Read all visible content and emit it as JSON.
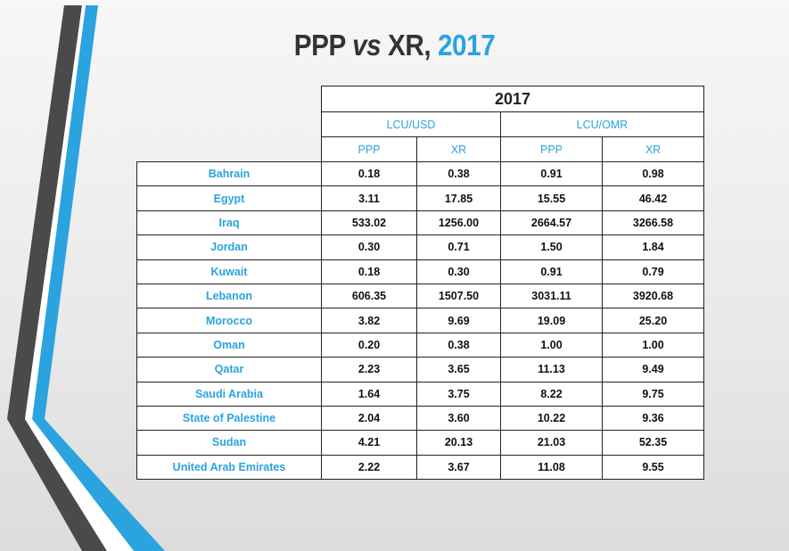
{
  "slide": {
    "title_main": "PPP ",
    "title_vs": "vs",
    "title_mid": " XR, ",
    "title_year": "2017"
  },
  "table": {
    "year": "2017",
    "groups": [
      "LCU/USD",
      "LCU/OMR"
    ],
    "subheaders": [
      "PPP",
      "XR",
      "PPP",
      "XR"
    ],
    "rows": [
      {
        "country": "Bahrain",
        "values": [
          "0.18",
          "0.38",
          "0.91",
          "0.98"
        ]
      },
      {
        "country": "Egypt",
        "values": [
          "3.11",
          "17.85",
          "15.55",
          "46.42"
        ]
      },
      {
        "country": "Iraq",
        "values": [
          "533.02",
          "1256.00",
          "2664.57",
          "3266.58"
        ]
      },
      {
        "country": "Jordan",
        "values": [
          "0.30",
          "0.71",
          "1.50",
          "1.84"
        ]
      },
      {
        "country": "Kuwait",
        "values": [
          "0.18",
          "0.30",
          "0.91",
          "0.79"
        ]
      },
      {
        "country": "Lebanon",
        "values": [
          "606.35",
          "1507.50",
          "3031.11",
          "3920.68"
        ]
      },
      {
        "country": "Morocco",
        "values": [
          "3.82",
          "9.69",
          "19.09",
          "25.20"
        ]
      },
      {
        "country": "Oman",
        "values": [
          "0.20",
          "0.38",
          "1.00",
          "1.00"
        ]
      },
      {
        "country": "Qatar",
        "values": [
          "2.23",
          "3.65",
          "11.13",
          "9.49"
        ]
      },
      {
        "country": "Saudi Arabia",
        "values": [
          "1.64",
          "3.75",
          "8.22",
          "9.75"
        ]
      },
      {
        "country": "State of Palestine",
        "values": [
          "2.04",
          "3.60",
          "10.22",
          "9.36"
        ]
      },
      {
        "country": "Sudan",
        "values": [
          "4.21",
          "20.13",
          "21.03",
          "52.35"
        ]
      },
      {
        "country": "United Arab Emirates",
        "values": [
          "2.22",
          "3.67",
          "11.08",
          "9.55"
        ]
      }
    ]
  },
  "colors": {
    "accent": "#2aa3df",
    "dark_stripe": "#4a4a4a",
    "text": "#111111"
  }
}
